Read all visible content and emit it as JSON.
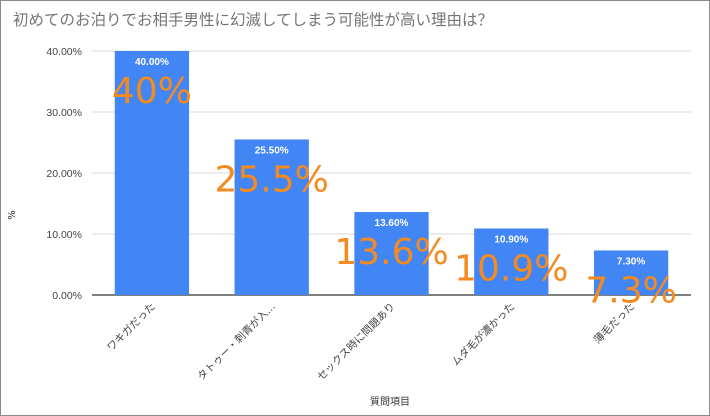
{
  "chart_data": {
    "type": "bar",
    "title": "初めてのお泊りでお相手男性に幻滅してしまう可能性が高い理由は？",
    "xlabel": "質問項目",
    "ylabel": "%",
    "categories": [
      "ワキガだった",
      "タトゥー・刺青が入...",
      "セックス時に問題あり",
      "ムダ毛が濃かった",
      "薄毛だった"
    ],
    "values": [
      40.0,
      25.5,
      13.6,
      10.9,
      7.3
    ],
    "data_labels": [
      "40.00%",
      "25.50%",
      "13.60%",
      "10.90%",
      "7.30%"
    ],
    "overlay_labels": [
      "40%",
      "25.5%",
      "13.6%",
      "10.9%",
      "7.3%"
    ],
    "y_ticks": [
      "0.00%",
      "10.00%",
      "20.00%",
      "30.00%",
      "40.00%"
    ],
    "ylim": [
      0,
      40
    ],
    "grid": true,
    "legend": "none",
    "bar_color": "#4285f4",
    "overlay_color": "#f58a1f"
  }
}
